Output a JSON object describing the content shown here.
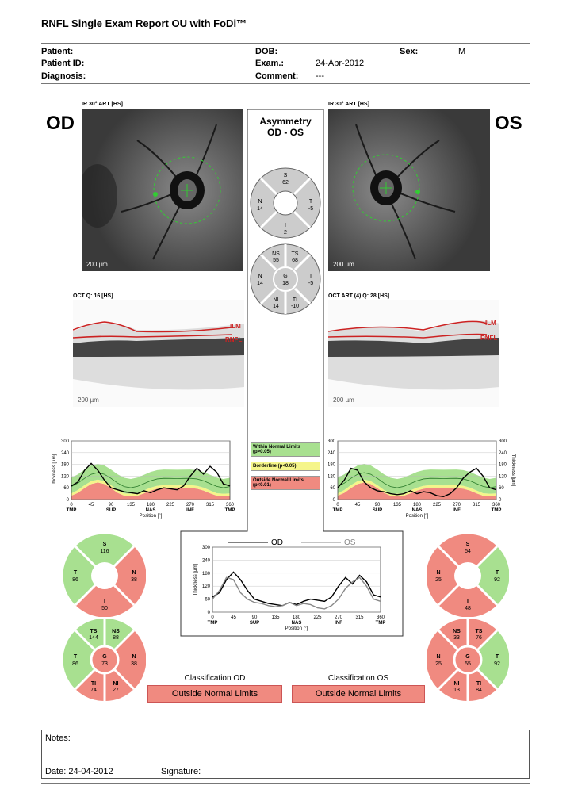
{
  "report": {
    "title": "RNFL Single Exam Report OU with FoDi™",
    "patient_label": "Patient:",
    "patient_id_label": "Patient ID:",
    "diagnosis_label": "Diagnosis:",
    "dob_label": "DOB:",
    "exam_label": "Exam.:",
    "exam_value": "24-Abr-2012",
    "comment_label": "Comment:",
    "comment_value": "---",
    "sex_label": "Sex:",
    "sex_value": "M"
  },
  "od": {
    "eye_label": "OD",
    "ir_label": "IR 30° ART [HS]",
    "oct_label": "OCT Q: 16 [HS]",
    "scale": "200 µm",
    "ilm": "ILM",
    "rnfl": "RNFL",
    "sectors": {
      "S": "116",
      "T": "86",
      "N": "38",
      "I": "50"
    },
    "sectors_detail": {
      "TS": "144",
      "NS": "88",
      "T": "86",
      "N": "38",
      "G": "73",
      "TI": "74",
      "NI": "27"
    },
    "classification_label": "Classification OD",
    "classification_value": "Outside Normal Limits"
  },
  "os": {
    "eye_label": "OS",
    "ir_label": "IR 30° ART [HS]",
    "oct_label": "OCT ART (4) Q: 28 [HS]",
    "scale": "200 µm",
    "ilm": "ILM",
    "rnfl": "RNFL",
    "sectors": {
      "S": "54",
      "T": "92",
      "N": "25",
      "I": "48"
    },
    "sectors_detail": {
      "NS": "33",
      "TS": "76",
      "N": "25",
      "T": "92",
      "G": "55",
      "NI": "13",
      "TI": "84"
    },
    "classification_label": "Classification OS",
    "classification_value": "Outside Normal Limits"
  },
  "asymmetry": {
    "title_line1": "Asymmetry",
    "title_line2": "OD - OS",
    "sectors": {
      "S": "62",
      "N": "14",
      "T": "-5",
      "I": "2"
    },
    "sectors_detail": {
      "NS": "55",
      "TS": "68",
      "N": "14",
      "G": "18",
      "T": "-5",
      "NI": "14",
      "TI": "-10"
    }
  },
  "legend": {
    "within": "Within Normal Limits",
    "within_p": "(p>0.05)",
    "borderline": "Borderline (p<0.05)",
    "outside": "Outside Normal Limits",
    "outside_p": "(p<0.01)"
  },
  "colors": {
    "green": "#a8e090",
    "yellow": "#f5f58a",
    "red": "#f08a80"
  },
  "chart_data": [
    {
      "type": "line",
      "name": "OD thickness profile",
      "ylabel": "Thickness [µm]",
      "xlabel": "Position [°]",
      "ylim": [
        0,
        300
      ],
      "xlim": [
        0,
        360
      ],
      "yticks": [
        "300",
        "240",
        "180",
        "120",
        "60",
        "0"
      ],
      "xticks": [
        "0",
        "45",
        "90",
        "135",
        "180",
        "225",
        "270",
        "315",
        "360"
      ],
      "region_labels": [
        "TMP",
        "SUP",
        "NAS",
        "INF",
        "TMP"
      ],
      "x": [
        0,
        15,
        30,
        45,
        60,
        75,
        90,
        105,
        120,
        135,
        150,
        165,
        180,
        195,
        210,
        225,
        240,
        255,
        270,
        285,
        300,
        315,
        330,
        345,
        360
      ],
      "values": [
        70,
        90,
        150,
        185,
        150,
        100,
        60,
        50,
        40,
        35,
        30,
        45,
        35,
        50,
        60,
        55,
        50,
        70,
        120,
        160,
        130,
        170,
        140,
        80,
        70
      ]
    },
    {
      "type": "line",
      "name": "OS thickness profile",
      "ylabel": "Thickness [µm]",
      "xlabel": "Position [°]",
      "ylim": [
        0,
        300
      ],
      "xlim": [
        0,
        360
      ],
      "yticks": [
        "300",
        "240",
        "180",
        "120",
        "60",
        "0"
      ],
      "xticks": [
        "0",
        "45",
        "90",
        "135",
        "180",
        "225",
        "270",
        "315",
        "360"
      ],
      "region_labels": [
        "TMP",
        "SUP",
        "NAS",
        "INF",
        "TMP"
      ],
      "x": [
        0,
        15,
        30,
        45,
        60,
        75,
        90,
        105,
        120,
        135,
        150,
        165,
        180,
        195,
        210,
        225,
        240,
        255,
        270,
        285,
        300,
        315,
        330,
        345,
        360
      ],
      "values": [
        60,
        100,
        160,
        150,
        90,
        60,
        45,
        40,
        30,
        25,
        30,
        45,
        30,
        40,
        35,
        20,
        15,
        30,
        60,
        110,
        140,
        160,
        120,
        60,
        50
      ]
    },
    {
      "type": "line",
      "name": "OD vs OS comparison",
      "legend": [
        "OD",
        "OS"
      ],
      "ylabel": "Thickness [µm]",
      "xlabel": "Position [°]",
      "ylim": [
        0,
        300
      ],
      "xlim": [
        0,
        360
      ],
      "yticks": [
        "300",
        "240",
        "180",
        "120",
        "60",
        "0"
      ],
      "xticks": [
        "0",
        "45",
        "90",
        "135",
        "180",
        "225",
        "270",
        "315",
        "360"
      ],
      "region_labels": [
        "TMP",
        "SUP",
        "NAS",
        "INF",
        "TMP"
      ],
      "series": [
        {
          "name": "OD",
          "values": [
            70,
            90,
            150,
            185,
            150,
            100,
            60,
            50,
            40,
            35,
            30,
            45,
            35,
            50,
            60,
            55,
            50,
            70,
            120,
            160,
            130,
            170,
            140,
            80,
            70
          ]
        },
        {
          "name": "OS",
          "values": [
            60,
            100,
            160,
            150,
            90,
            60,
            45,
            40,
            30,
            25,
            30,
            45,
            30,
            40,
            35,
            20,
            15,
            30,
            60,
            110,
            140,
            160,
            120,
            60,
            50
          ]
        }
      ],
      "x": [
        0,
        15,
        30,
        45,
        60,
        75,
        90,
        105,
        120,
        135,
        150,
        165,
        180,
        195,
        210,
        225,
        240,
        255,
        270,
        285,
        300,
        315,
        330,
        345,
        360
      ]
    }
  ],
  "notes": {
    "notes_label": "Notes:",
    "date_label": "Date: 24-04-2012",
    "signature_label": "Signature:"
  }
}
